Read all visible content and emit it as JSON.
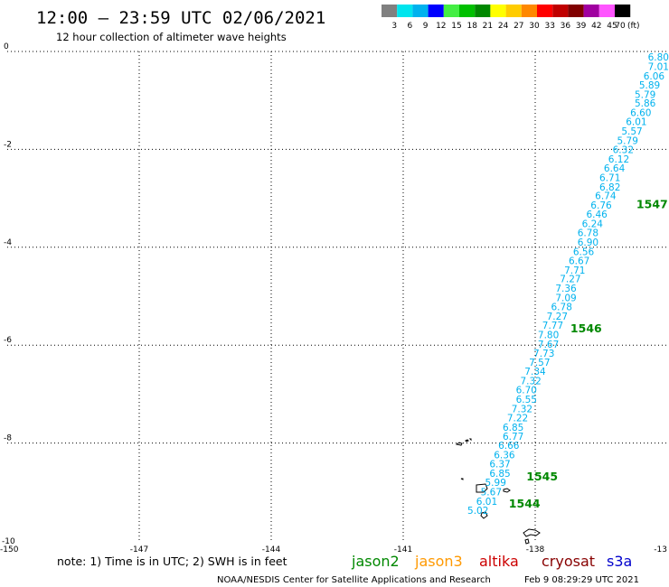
{
  "header": {
    "title": "12:00 – 23:59 UTC 02/06/2021",
    "subtitle": "12 hour collection of altimeter wave heights"
  },
  "legend": {
    "unit": "(ft)",
    "bins": [
      {
        "label": "3",
        "color": "#808080"
      },
      {
        "label": "6",
        "color": "#00e5ee"
      },
      {
        "label": "9",
        "color": "#00b2ee"
      },
      {
        "label": "12",
        "color": "#0000ff"
      },
      {
        "label": "15",
        "color": "#44ee44"
      },
      {
        "label": "18",
        "color": "#00c000"
      },
      {
        "label": "21",
        "color": "#008800"
      },
      {
        "label": "24",
        "color": "#ffff00"
      },
      {
        "label": "27",
        "color": "#ffcc00"
      },
      {
        "label": "30",
        "color": "#ff8800"
      },
      {
        "label": "33",
        "color": "#ff0000"
      },
      {
        "label": "36",
        "color": "#c00000"
      },
      {
        "label": "39",
        "color": "#800000"
      },
      {
        "label": "42",
        "color": "#a000a0"
      },
      {
        "label": "45",
        "color": "#ff55ff"
      },
      {
        "label": "70",
        "color": "#000000"
      }
    ]
  },
  "notes": {
    "note": "note:  1) Time is in UTC;  2) SWH is in feet",
    "satellites": [
      {
        "label": "jason2",
        "color": "#0000cc"
      },
      {
        "label": "jason3",
        "color": "#008800"
      },
      {
        "label": "altika",
        "color": "#ff9900"
      },
      {
        "label": "cryosat",
        "color": "#cc0000"
      },
      {
        "label": "s3a",
        "color": "#880000"
      }
    ]
  },
  "footer": {
    "credit": "NOAA/NESDIS Center for Satellite Applications and Research",
    "timestamp": "Feb  9 08:29:29 UTC 2021"
  },
  "chart_data": {
    "type": "scatter",
    "xlim": [
      -150,
      -135
    ],
    "ylim": [
      -10,
      0
    ],
    "xticks": [
      -147,
      -144,
      -141,
      -138
    ],
    "yticks": [
      0,
      -2,
      -4,
      -6,
      -8
    ],
    "xtick_labels": [
      "-147",
      "-144",
      "-141",
      "-138"
    ],
    "ytick_labels": [
      "0",
      "-2",
      "-4",
      "-6",
      "-8"
    ],
    "corner_labels": {
      "bottom_left_y": "-10",
      "bottom_left_x": "-150",
      "bottom_right_x": "-13"
    },
    "grid": true,
    "point_color": "#00b2ee",
    "time_color": "#008800",
    "points": [
      {
        "lon": -135.2,
        "lat": -0.04,
        "value": "6.80"
      },
      {
        "lon": -135.2,
        "lat": -0.23,
        "value": "7.01"
      },
      {
        "lon": -135.3,
        "lat": -0.42,
        "value": "6.06"
      },
      {
        "lon": -135.4,
        "lat": -0.61,
        "value": "5.89"
      },
      {
        "lon": -135.5,
        "lat": -0.8,
        "value": "5.79"
      },
      {
        "lon": -135.5,
        "lat": -0.98,
        "value": "5.86"
      },
      {
        "lon": -135.6,
        "lat": -1.17,
        "value": "6.60"
      },
      {
        "lon": -135.7,
        "lat": -1.36,
        "value": "6.01"
      },
      {
        "lon": -135.8,
        "lat": -1.55,
        "value": "5.57"
      },
      {
        "lon": -135.9,
        "lat": -1.74,
        "value": "5.79"
      },
      {
        "lon": -136.0,
        "lat": -1.93,
        "value": "6.32"
      },
      {
        "lon": -136.1,
        "lat": -2.12,
        "value": "6.12"
      },
      {
        "lon": -136.2,
        "lat": -2.31,
        "value": "6.64"
      },
      {
        "lon": -136.3,
        "lat": -2.5,
        "value": "6.71"
      },
      {
        "lon": -136.3,
        "lat": -2.69,
        "value": "6.82"
      },
      {
        "lon": -136.4,
        "lat": -2.87,
        "value": "6.74"
      },
      {
        "lon": -136.5,
        "lat": -3.06,
        "value": "6.76"
      },
      {
        "lon": -136.6,
        "lat": -3.25,
        "value": "6.46"
      },
      {
        "lon": -136.7,
        "lat": -3.44,
        "value": "6.24"
      },
      {
        "lon": -136.8,
        "lat": -3.63,
        "value": "6.78"
      },
      {
        "lon": -136.8,
        "lat": -3.82,
        "value": "6.90"
      },
      {
        "lon": -136.9,
        "lat": -4.01,
        "value": "6.56"
      },
      {
        "lon": -137.0,
        "lat": -4.2,
        "value": "6.67"
      },
      {
        "lon": -137.1,
        "lat": -4.39,
        "value": "7.71"
      },
      {
        "lon": -137.2,
        "lat": -4.57,
        "value": "7.27"
      },
      {
        "lon": -137.3,
        "lat": -4.76,
        "value": "7.36"
      },
      {
        "lon": -137.3,
        "lat": -4.95,
        "value": "7.09"
      },
      {
        "lon": -137.4,
        "lat": -5.14,
        "value": "6.78"
      },
      {
        "lon": -137.5,
        "lat": -5.33,
        "value": "7.27"
      },
      {
        "lon": -137.6,
        "lat": -5.52,
        "value": "7.77"
      },
      {
        "lon": -137.7,
        "lat": -5.71,
        "value": "7.80"
      },
      {
        "lon": -137.7,
        "lat": -5.9,
        "value": "7.67"
      },
      {
        "lon": -137.8,
        "lat": -6.09,
        "value": "7.73"
      },
      {
        "lon": -137.9,
        "lat": -6.27,
        "value": "7.57"
      },
      {
        "lon": -138.0,
        "lat": -6.46,
        "value": "7.34"
      },
      {
        "lon": -138.1,
        "lat": -6.65,
        "value": "7.32"
      },
      {
        "lon": -138.2,
        "lat": -6.84,
        "value": "6.70"
      },
      {
        "lon": -138.2,
        "lat": -7.03,
        "value": "6.55"
      },
      {
        "lon": -138.3,
        "lat": -7.22,
        "value": "7.32"
      },
      {
        "lon": -138.4,
        "lat": -7.41,
        "value": "7.22"
      },
      {
        "lon": -138.5,
        "lat": -7.6,
        "value": "6.85"
      },
      {
        "lon": -138.5,
        "lat": -7.79,
        "value": "6.77"
      },
      {
        "lon": -138.6,
        "lat": -7.97,
        "value": "6.66"
      },
      {
        "lon": -138.7,
        "lat": -8.16,
        "value": "6.36"
      },
      {
        "lon": -138.8,
        "lat": -8.35,
        "value": "6.37"
      },
      {
        "lon": -138.8,
        "lat": -8.54,
        "value": "6.85"
      },
      {
        "lon": -138.9,
        "lat": -8.73,
        "value": "5.99"
      },
      {
        "lon": -139.0,
        "lat": -8.92,
        "value": "5.67"
      },
      {
        "lon": -139.1,
        "lat": -9.11,
        "value": "6.01"
      },
      {
        "lon": -139.3,
        "lat": -9.3,
        "value": "5.02"
      }
    ],
    "time_labels": [
      {
        "lon": -135.7,
        "lat": -3.2,
        "value": "1547"
      },
      {
        "lon": -137.2,
        "lat": -5.74,
        "value": "1546"
      },
      {
        "lon": -138.2,
        "lat": -8.76,
        "value": "1545"
      },
      {
        "lon": -138.6,
        "lat": -9.32,
        "value": "1544"
      }
    ]
  }
}
